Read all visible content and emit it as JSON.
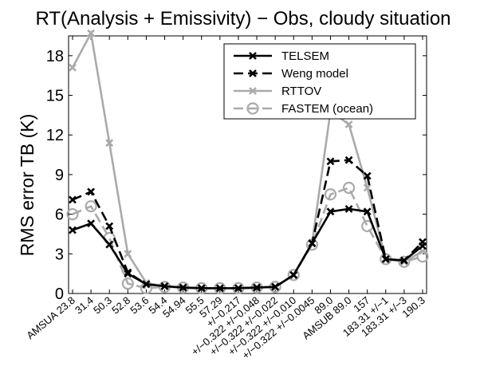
{
  "chart_data": {
    "type": "line",
    "title": "RT(Analysis + Emissivity) − Obs, cloudy situation",
    "ylabel": "RMS error TB (K)",
    "xlabel": "",
    "ylim": [
      0,
      19.5
    ],
    "yticks": [
      0,
      3,
      6,
      9,
      12,
      15,
      18
    ],
    "grid": false,
    "legend_position": "top-right",
    "categories": [
      "AMSUA 23.8",
      "31.4",
      "50.3",
      "52.8",
      "53.6",
      "54.4",
      "54.94",
      "55.5",
      "57.29",
      "+/−0.217",
      "+/−0.322 +/−0.048",
      "+/−0.322 +/−0.022",
      "+/−0.322 +/−0.010",
      "+/−0.322 +/−0.0045",
      "89.0",
      "AMSUB 89.0",
      "157",
      "183.31 +/−1",
      "183.31 +/−3",
      "190.3"
    ],
    "series": [
      {
        "name": "TELSEM",
        "color": "#000000",
        "dashed": false,
        "marker": "x",
        "values": [
          4.8,
          5.3,
          3.7,
          1.5,
          0.7,
          0.55,
          0.45,
          0.4,
          0.4,
          0.4,
          0.45,
          0.5,
          1.4,
          3.8,
          6.2,
          6.4,
          6.2,
          2.6,
          2.5,
          3.6
        ]
      },
      {
        "name": "Weng model",
        "color": "#000000",
        "dashed": true,
        "marker": "x",
        "values": [
          7.1,
          7.7,
          5.1,
          1.6,
          0.7,
          0.55,
          0.45,
          0.4,
          0.4,
          0.4,
          0.45,
          0.5,
          1.4,
          3.8,
          10.0,
          10.1,
          8.9,
          2.6,
          2.5,
          3.9
        ]
      },
      {
        "name": "RTTOV",
        "color": "#aaaaaa",
        "dashed": false,
        "marker": "x",
        "values": [
          17.1,
          19.7,
          11.4,
          3.0,
          0.8,
          0.55,
          0.45,
          0.4,
          0.4,
          0.4,
          0.45,
          0.5,
          1.4,
          3.8,
          13.8,
          12.8,
          8.0,
          2.6,
          2.4,
          3.2
        ]
      },
      {
        "name": "FASTEM (ocean)",
        "color": "#aaaaaa",
        "dashed": true,
        "marker": "o",
        "values": [
          6.0,
          6.6,
          4.2,
          0.75,
          0.4,
          0.5,
          0.45,
          0.4,
          0.4,
          0.4,
          0.45,
          0.5,
          1.4,
          3.7,
          7.5,
          8.0,
          5.1,
          2.6,
          2.4,
          2.8
        ]
      }
    ]
  }
}
